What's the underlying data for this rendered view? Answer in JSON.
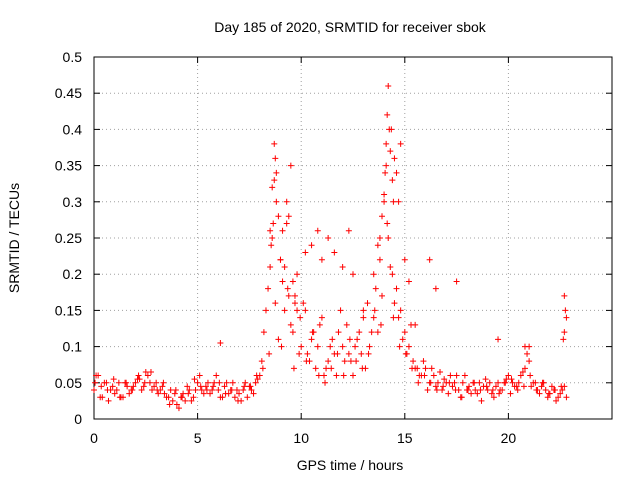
{
  "chart_data": {
    "type": "scatter",
    "title": "Day 185 of 2020, SRMTID for receiver sbok",
    "xlabel": "GPS time / hours",
    "ylabel": "SRMTID / TECUs",
    "xlim": [
      0,
      25
    ],
    "ylim": [
      0,
      0.5
    ],
    "x_ticks": [
      0,
      5,
      10,
      15,
      20
    ],
    "x_tick_labels": [
      "0",
      "5",
      "10",
      "15",
      "20"
    ],
    "y_ticks": [
      0,
      0.05,
      0.1,
      0.15,
      0.2,
      0.25,
      0.3,
      0.35,
      0.4,
      0.45,
      0.5
    ],
    "y_tick_labels": [
      "0",
      "0.05",
      "0.1",
      "0.15",
      "0.2",
      "0.25",
      "0.3",
      "0.35",
      "0.4",
      "0.45",
      "0.5"
    ],
    "grid": true,
    "marker": "+",
    "color": "#ff0000",
    "series": [
      {
        "name": "SRMTID",
        "x": [
          0.0,
          0.2,
          0.4,
          0.6,
          0.8,
          1.0,
          1.2,
          1.4,
          1.6,
          1.8,
          2.0,
          2.2,
          2.4,
          2.6,
          2.8,
          3.0,
          3.2,
          3.4,
          3.6,
          3.8,
          4.0,
          4.2,
          4.4,
          4.6,
          4.8,
          5.0,
          5.2,
          5.4,
          5.6,
          5.8,
          6.0,
          6.2,
          6.4,
          6.6,
          6.8,
          7.0,
          7.2,
          7.4,
          7.6,
          7.8,
          8.0,
          8.2,
          8.4,
          8.6,
          8.8,
          9.0,
          9.2,
          9.4,
          9.6,
          9.8,
          10.0,
          10.2,
          10.4,
          10.6,
          10.8,
          11.0,
          11.2,
          11.4,
          11.6,
          11.8,
          12.0,
          12.2,
          12.4,
          12.6,
          12.8,
          13.0,
          13.2,
          13.4,
          13.6,
          13.8,
          14.0,
          14.2,
          14.4,
          14.6,
          14.8,
          15.0,
          15.2,
          15.4,
          15.6,
          15.8,
          16.0,
          16.2,
          16.4,
          16.6,
          16.8,
          17.0,
          17.2,
          17.4,
          17.6,
          17.8,
          18.0,
          18.2,
          18.4,
          18.6,
          18.8,
          19.0,
          19.2,
          19.4,
          19.6,
          19.8,
          20.0,
          20.2,
          20.4,
          20.6,
          20.8,
          21.0,
          21.2,
          21.4,
          21.6,
          21.8,
          22.0,
          22.2,
          22.4,
          22.6,
          22.8,
          0.1,
          0.3,
          0.5,
          0.7,
          0.9,
          1.1,
          1.3,
          1.5,
          1.7,
          1.9,
          2.1,
          2.3,
          2.5,
          2.7,
          2.9,
          3.1,
          3.3,
          3.5,
          3.7,
          3.9,
          4.1,
          4.3,
          4.5,
          4.7,
          4.9,
          5.1,
          5.3,
          5.5,
          5.7,
          5.9,
          6.1,
          6.3,
          6.5,
          6.7,
          6.9,
          7.1,
          7.3,
          7.5,
          7.7,
          7.9,
          8.1,
          8.3,
          8.5,
          8.7,
          8.9,
          9.1,
          9.3,
          9.5,
          9.7,
          9.9,
          10.1,
          10.3,
          10.5,
          10.7,
          10.9,
          11.1,
          11.3,
          11.5,
          11.7,
          11.9,
          12.1,
          12.3,
          12.5,
          12.7,
          12.9,
          13.1,
          13.3,
          13.5,
          13.7,
          13.9,
          14.1,
          14.3,
          14.5,
          14.7,
          14.9,
          15.1,
          15.3,
          15.5,
          15.7,
          15.9,
          16.1,
          16.3,
          16.5,
          16.7,
          16.9,
          17.1,
          17.3,
          17.5,
          17.7,
          17.9,
          18.1,
          18.3,
          18.5,
          18.7,
          18.9,
          19.1,
          19.3,
          19.5,
          19.7,
          19.9,
          20.1,
          20.3,
          20.5,
          20.7,
          20.9,
          21.1,
          21.3,
          21.5,
          21.7,
          21.9,
          22.1,
          22.3,
          22.5,
          22.7,
          0.05,
          0.35,
          0.65,
          0.95,
          1.25,
          1.55,
          1.85,
          2.15,
          2.45,
          2.75,
          3.05,
          3.35,
          3.65,
          3.95,
          4.25,
          4.55,
          4.85,
          5.15,
          5.45,
          5.75,
          6.05,
          6.35,
          6.65,
          6.95,
          7.25,
          7.55,
          7.85,
          8.15,
          8.45,
          8.75,
          9.05,
          9.35,
          9.65,
          9.95,
          10.25,
          10.55,
          10.85,
          11.15,
          11.45,
          11.75,
          12.05,
          12.35,
          12.65,
          12.95,
          13.25,
          13.55,
          13.85,
          14.15,
          14.45,
          14.75,
          15.05,
          15.35,
          15.65,
          15.95,
          16.25,
          16.55,
          16.85,
          17.15,
          17.45,
          17.75,
          18.05,
          18.35,
          18.65,
          18.95,
          19.25,
          19.55,
          19.85,
          20.15,
          20.45,
          20.75,
          21.05,
          21.35,
          21.65,
          21.95,
          22.25,
          22.55,
          8.5,
          8.6,
          8.7,
          8.75,
          8.8,
          8.65,
          8.55,
          8.9,
          9.0,
          9.1,
          9.2,
          9.4,
          9.6,
          9.7,
          9.8,
          9.3,
          9.5,
          10.2,
          10.5,
          10.8,
          11.0,
          11.3,
          11.6,
          12.0,
          12.3,
          12.5,
          13.0,
          13.5,
          13.7,
          13.9,
          14.0,
          14.05,
          14.1,
          14.15,
          14.2,
          14.25,
          14.3,
          14.4,
          14.5,
          14.6,
          14.7,
          14.8,
          15.0,
          13.8,
          14.35,
          14.45,
          15.2,
          15.5,
          16.2,
          16.5,
          17.5,
          19.5,
          20.8,
          21.0,
          22.7,
          22.75,
          22.8,
          22.7,
          22.65,
          6.1
        ],
        "y": [
          0.04,
          0.06,
          0.03,
          0.05,
          0.04,
          0.035,
          0.05,
          0.03,
          0.045,
          0.04,
          0.05,
          0.055,
          0.045,
          0.06,
          0.04,
          0.05,
          0.04,
          0.035,
          0.03,
          0.025,
          0.02,
          0.03,
          0.025,
          0.04,
          0.03,
          0.05,
          0.04,
          0.045,
          0.035,
          0.05,
          0.04,
          0.03,
          0.05,
          0.04,
          0.03,
          0.035,
          0.04,
          0.03,
          0.04,
          0.05,
          0.06,
          0.12,
          0.18,
          0.25,
          0.3,
          0.22,
          0.15,
          0.28,
          0.12,
          0.2,
          0.1,
          0.15,
          0.08,
          0.12,
          0.1,
          0.14,
          0.07,
          0.1,
          0.09,
          0.12,
          0.1,
          0.13,
          0.08,
          0.1,
          0.12,
          0.14,
          0.16,
          0.12,
          0.18,
          0.22,
          0.3,
          0.25,
          0.2,
          0.18,
          0.15,
          0.12,
          0.1,
          0.08,
          0.07,
          0.06,
          0.07,
          0.05,
          0.06,
          0.05,
          0.04,
          0.05,
          0.06,
          0.05,
          0.04,
          0.05,
          0.04,
          0.035,
          0.04,
          0.05,
          0.045,
          0.04,
          0.035,
          0.045,
          0.04,
          0.05,
          0.06,
          0.05,
          0.045,
          0.06,
          0.07,
          0.08,
          0.05,
          0.04,
          0.045,
          0.04,
          0.035,
          0.04,
          0.03,
          0.04,
          0.03,
          0.06,
          0.03,
          0.05,
          0.025,
          0.045,
          0.04,
          0.03,
          0.05,
          0.035,
          0.045,
          0.055,
          0.04,
          0.065,
          0.05,
          0.045,
          0.035,
          0.045,
          0.03,
          0.04,
          0.035,
          0.015,
          0.035,
          0.045,
          0.025,
          0.04,
          0.06,
          0.035,
          0.05,
          0.04,
          0.06,
          0.03,
          0.045,
          0.035,
          0.05,
          0.04,
          0.025,
          0.05,
          0.045,
          0.035,
          0.055,
          0.08,
          0.15,
          0.21,
          0.33,
          0.11,
          0.19,
          0.27,
          0.13,
          0.17,
          0.09,
          0.16,
          0.09,
          0.11,
          0.07,
          0.13,
          0.06,
          0.08,
          0.11,
          0.06,
          0.15,
          0.08,
          0.09,
          0.06,
          0.11,
          0.09,
          0.07,
          0.1,
          0.14,
          0.12,
          0.17,
          0.35,
          0.21,
          0.16,
          0.14,
          0.11,
          0.09,
          0.13,
          0.07,
          0.06,
          0.08,
          0.04,
          0.07,
          0.045,
          0.065,
          0.055,
          0.035,
          0.045,
          0.06,
          0.03,
          0.06,
          0.045,
          0.05,
          0.035,
          0.025,
          0.055,
          0.05,
          0.03,
          0.05,
          0.04,
          0.055,
          0.035,
          0.045,
          0.05,
          0.065,
          0.09,
          0.045,
          0.05,
          0.035,
          0.05,
          0.03,
          0.045,
          0.025,
          0.035,
          0.045,
          0.05,
          0.045,
          0.04,
          0.055,
          0.03,
          0.05,
          0.04,
          0.06,
          0.05,
          0.065,
          0.04,
          0.05,
          0.02,
          0.04,
          0.03,
          0.035,
          0.055,
          0.045,
          0.04,
          0.045,
          0.05,
          0.035,
          0.04,
          0.025,
          0.045,
          0.045,
          0.06,
          0.07,
          0.09,
          0.16,
          0.1,
          0.18,
          0.07,
          0.14,
          0.08,
          0.12,
          0.06,
          0.05,
          0.07,
          0.09,
          0.06,
          0.11,
          0.08,
          0.07,
          0.09,
          0.15,
          0.13,
          0.27,
          0.14,
          0.1,
          0.09,
          0.07,
          0.05,
          0.06,
          0.05,
          0.04,
          0.045,
          0.05,
          0.04,
          0.03,
          0.04,
          0.05,
          0.04,
          0.045,
          0.04,
          0.035,
          0.05,
          0.055,
          0.04,
          0.045,
          0.06,
          0.04,
          0.05,
          0.035,
          0.04,
          0.045,
          0.26,
          0.32,
          0.38,
          0.36,
          0.34,
          0.27,
          0.24,
          0.28,
          0.22,
          0.26,
          0.21,
          0.17,
          0.19,
          0.16,
          0.15,
          0.3,
          0.35,
          0.23,
          0.24,
          0.26,
          0.22,
          0.25,
          0.23,
          0.21,
          0.26,
          0.2,
          0.15,
          0.2,
          0.24,
          0.28,
          0.31,
          0.34,
          0.38,
          0.42,
          0.46,
          0.4,
          0.37,
          0.33,
          0.36,
          0.34,
          0.3,
          0.38,
          0.22,
          0.25,
          0.4,
          0.3,
          0.19,
          0.13,
          0.22,
          0.18,
          0.19,
          0.11,
          0.1,
          0.1,
          0.17,
          0.15,
          0.14,
          0.12,
          0.11,
          0.105
        ]
      }
    ]
  }
}
